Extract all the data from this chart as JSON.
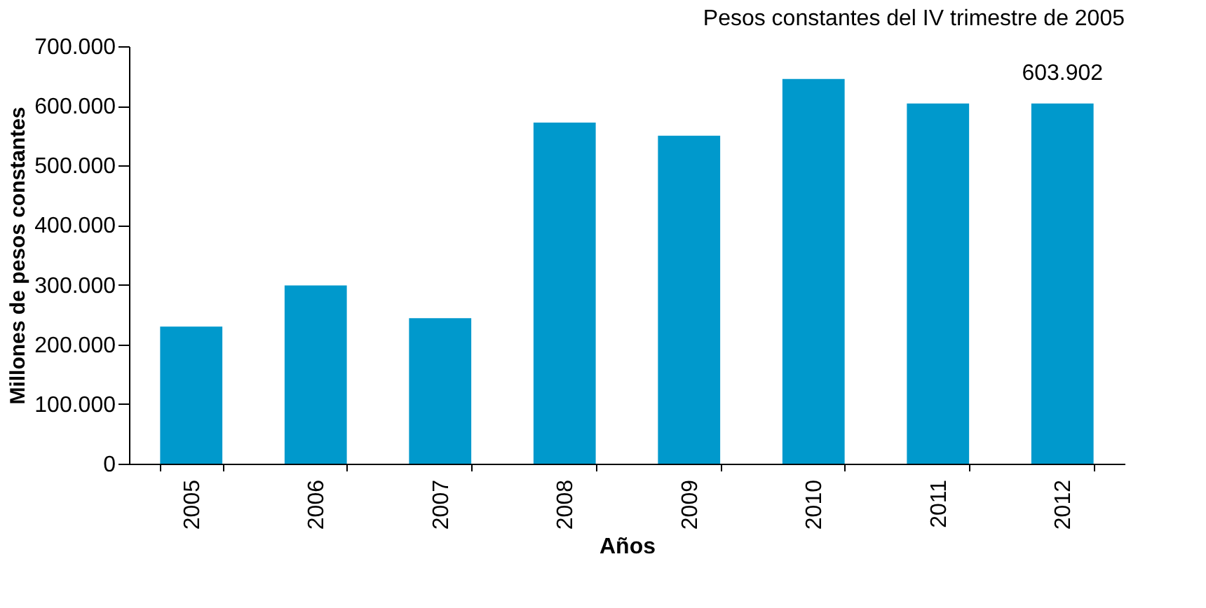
{
  "chart_data": {
    "type": "bar",
    "title": "Pesos constantes del IV trimestre de 2005",
    "xlabel": "Años",
    "ylabel": "Millones de pesos constantes",
    "categories": [
      "2005",
      "2006",
      "2007",
      "2008",
      "2009",
      "2010",
      "2011",
      "2012"
    ],
    "series": [
      {
        "color": "#0099cc",
        "values": [
          230000,
          299000,
          244000,
          572000,
          550000,
          645000,
          604000,
          603902
        ],
        "value_labels": [
          null,
          null,
          null,
          null,
          null,
          null,
          null,
          "603.902"
        ]
      }
    ],
    "ylim": [
      0,
      700000
    ],
    "yticks": [
      {
        "value": 0,
        "label": "0"
      },
      {
        "value": 100000,
        "label": "100.000"
      },
      {
        "value": 200000,
        "label": "200.000"
      },
      {
        "value": 300000,
        "label": "300.000"
      },
      {
        "value": 400000,
        "label": "400.000"
      },
      {
        "value": 500000,
        "label": "500.000"
      },
      {
        "value": 600000,
        "label": "600.000"
      },
      {
        "value": 700000,
        "label": "700.000"
      }
    ],
    "grid": false,
    "legend": false
  }
}
